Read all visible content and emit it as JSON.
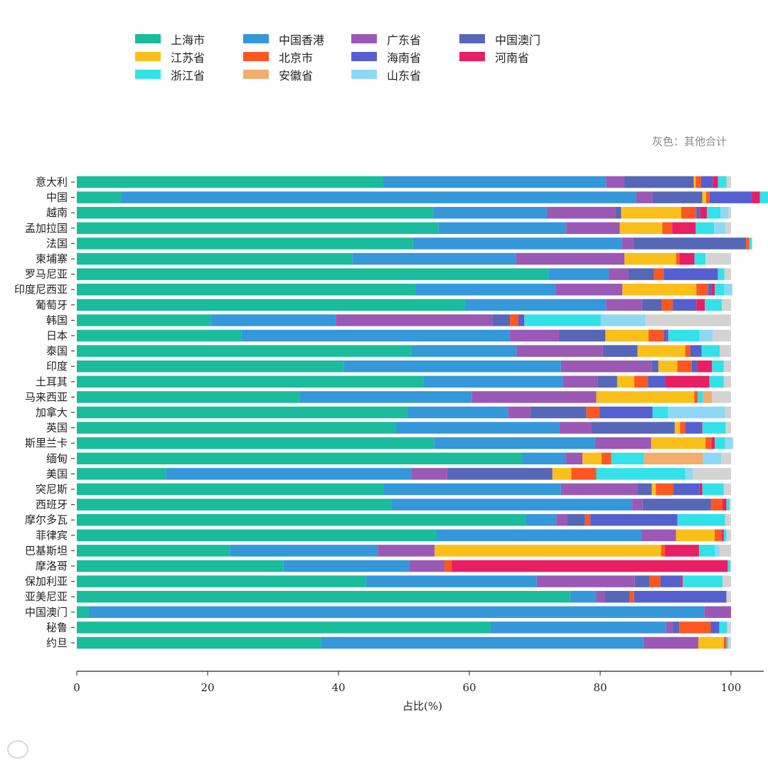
{
  "chart_data": {
    "type": "bar",
    "orientation": "horizontal",
    "stacked": true,
    "title": "",
    "xlabel": "占比(%)",
    "ylabel": "",
    "xlim": [
      0,
      105
    ],
    "x_ticks": [
      0,
      20,
      40,
      60,
      80,
      100
    ],
    "grid": false,
    "legend_placement": "top",
    "note": "灰色：其他合计",
    "categories": [
      "意大利",
      "中国",
      "越南",
      "孟加拉国",
      "法国",
      "柬埔寨",
      "罗马尼亚",
      "印度尼西亚",
      "葡萄牙",
      "韩国",
      "日本",
      "泰国",
      "印度",
      "土耳其",
      "马来西亚",
      "加拿大",
      "英国",
      "斯里兰卡",
      "缅甸",
      "美国",
      "突尼斯",
      "西班牙",
      "摩尔多瓦",
      "菲律宾",
      "巴基斯坦",
      "摩洛哥",
      "保加利亚",
      "亚美尼亚",
      "中国澳门",
      "秘鲁",
      "约旦"
    ],
    "series": [
      {
        "name": "上海市",
        "color": "#1abc9c",
        "values": [
          46.8,
          6.8,
          54.5,
          55.3,
          51.4,
          42.1,
          72.1,
          51.8,
          59.4,
          20.5,
          25.2,
          51.1,
          40.8,
          53.0,
          34.0,
          50.6,
          48.8,
          54.6,
          68.1,
          13.6,
          46.9,
          48.1,
          68.5,
          55.0,
          23.4,
          31.6,
          44.2,
          75.4,
          1.8,
          63.2,
          37.3
        ]
      },
      {
        "name": "中国香港",
        "color": "#3498db",
        "values": [
          34.1,
          78.7,
          17.4,
          19.5,
          31.9,
          25.0,
          9.2,
          21.4,
          21.5,
          19.1,
          41.0,
          16.1,
          33.2,
          21.3,
          26.4,
          15.3,
          25.0,
          24.6,
          6.6,
          37.5,
          27.1,
          36.8,
          4.8,
          31.3,
          22.6,
          19.2,
          26.1,
          4.0,
          94.1,
          26.9,
          49.3
        ]
      },
      {
        "name": "广东省",
        "color": "#9b59b6",
        "values": [
          2.8,
          2.5,
          10.4,
          8.2,
          1.8,
          16.6,
          3.0,
          10.2,
          5.5,
          23.9,
          7.5,
          13.2,
          13.9,
          5.3,
          19.0,
          3.5,
          4.8,
          8.6,
          2.6,
          5.5,
          11.7,
          1.6,
          1.7,
          5.3,
          8.7,
          5.4,
          15.0,
          1.3,
          4.1,
          1.0,
          8.4
        ]
      },
      {
        "name": "中国澳门",
        "color": "#5667b8",
        "values": [
          10.6,
          7.6,
          0.9,
          0.0,
          17.2,
          0.0,
          3.9,
          0.0,
          3.0,
          2.7,
          7.1,
          5.3,
          1.0,
          3.0,
          0.0,
          8.5,
          12.8,
          0.0,
          0.0,
          16.1,
          2.2,
          10.4,
          2.7,
          0.0,
          0.0,
          0.0,
          2.2,
          3.8,
          0.0,
          1.0,
          0.0
        ]
      },
      {
        "name": "江苏省",
        "color": "#fbbf1a",
        "values": [
          0.3,
          0.6,
          9.2,
          6.5,
          0.0,
          7.9,
          0.0,
          11.3,
          0.0,
          0.0,
          6.6,
          7.3,
          2.9,
          2.6,
          15.0,
          0.0,
          0.8,
          8.3,
          2.9,
          2.9,
          0.6,
          0.0,
          0.0,
          5.9,
          34.6,
          0.0,
          0.0,
          0.0,
          0.0,
          0.0,
          3.9
        ]
      },
      {
        "name": "北京市",
        "color": "#fe5722",
        "values": [
          0.8,
          0.5,
          2.3,
          1.5,
          0.5,
          0.5,
          1.5,
          1.8,
          1.7,
          1.3,
          2.3,
          0.8,
          2.2,
          2.1,
          0.5,
          2.0,
          0.8,
          0.9,
          1.5,
          3.8,
          2.7,
          1.8,
          0.8,
          1.1,
          0.6,
          1.1,
          1.7,
          0.7,
          0.0,
          4.8,
          0.4
        ]
      },
      {
        "name": "海南省",
        "color": "#5460cf",
        "values": [
          1.8,
          6.5,
          0.6,
          0.0,
          0.0,
          0.0,
          8.3,
          0.5,
          3.6,
          0.7,
          0.5,
          1.7,
          0.8,
          2.6,
          0.0,
          8.1,
          2.4,
          0.0,
          0.0,
          0.0,
          4.0,
          0.0,
          13.3,
          0.0,
          0.0,
          0.0,
          3.1,
          14.1,
          0.0,
          1.3,
          0.0
        ]
      },
      {
        "name": "河南省",
        "color": "#e91e63",
        "values": [
          0.8,
          1.2,
          1.0,
          3.6,
          0.0,
          2.3,
          0.0,
          0.5,
          1.3,
          0.2,
          0.2,
          0.0,
          2.3,
          6.8,
          0.0,
          0.0,
          0.2,
          0.5,
          0.0,
          0.0,
          0.4,
          0.6,
          0.0,
          0.3,
          5.2,
          42.2,
          0.3,
          0.0,
          0.0,
          0.0,
          0.0
        ]
      },
      {
        "name": "浙江省",
        "color": "#33e1e8",
        "values": [
          1.3,
          1.5,
          2.1,
          2.8,
          0.4,
          1.7,
          1.0,
          1.5,
          2.6,
          11.7,
          4.8,
          2.8,
          1.8,
          2.2,
          0.8,
          2.4,
          3.6,
          1.6,
          5.0,
          13.6,
          3.3,
          0.5,
          7.3,
          0.4,
          2.4,
          0.4,
          6.1,
          0.0,
          0.0,
          1.2,
          0.3
        ]
      },
      {
        "name": "安徽省",
        "color": "#f0ad6c",
        "values": [
          0.0,
          0.0,
          0.0,
          0.0,
          0.0,
          0.0,
          0.0,
          0.0,
          0.0,
          0.0,
          0.0,
          0.0,
          0.0,
          0.0,
          1.4,
          0.0,
          0.0,
          0.0,
          9.0,
          0.0,
          0.0,
          0.0,
          0.0,
          0.0,
          0.0,
          0.0,
          0.0,
          0.0,
          0.0,
          0.0,
          0.0
        ]
      },
      {
        "name": "山东省",
        "color": "#8fd8f5",
        "values": [
          0.0,
          0.0,
          1.2,
          1.8,
          0.0,
          0.0,
          0.0,
          1.2,
          0.0,
          6.8,
          2.0,
          0.0,
          0.0,
          0.0,
          0.0,
          8.7,
          0.0,
          1.2,
          2.8,
          1.2,
          0.0,
          0.0,
          0.0,
          0.0,
          0.8,
          0.0,
          0.0,
          0.0,
          0.0,
          0.0,
          0.0
        ]
      }
    ],
    "other_color": "#d3d3d3"
  }
}
